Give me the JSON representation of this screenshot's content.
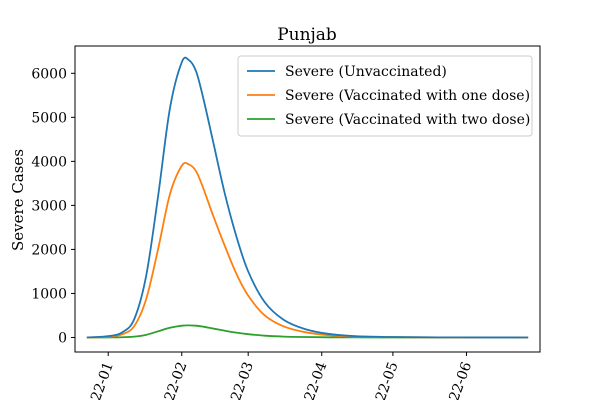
{
  "chart_data": {
    "type": "line",
    "title": "Punjab",
    "xlabel": "",
    "ylabel": "Severe Cases",
    "x_axis_type": "date",
    "xlim": [
      "2021-12-18",
      "2022-07-02"
    ],
    "ylim": [
      -330,
      6620
    ],
    "x_ticks": [
      {
        "date": "2022-01-01",
        "label": "2022-01"
      },
      {
        "date": "2022-02-01",
        "label": "2022-02"
      },
      {
        "date": "2022-03-01",
        "label": "2022-03"
      },
      {
        "date": "2022-04-01",
        "label": "2022-04"
      },
      {
        "date": "2022-05-01",
        "label": "2022-05"
      },
      {
        "date": "2022-06-01",
        "label": "2022-06"
      }
    ],
    "x_tick_rotation": "70 degrees counter-clockwise",
    "y_ticks": [
      0,
      1000,
      2000,
      3000,
      4000,
      5000,
      6000
    ],
    "grid": false,
    "legend_position": "top-right",
    "x": [
      "2021-12-23",
      "2022-01-01",
      "2022-01-07",
      "2022-01-12",
      "2022-01-17",
      "2022-01-22",
      "2022-01-27",
      "2022-02-01",
      "2022-02-04",
      "2022-02-07",
      "2022-02-10",
      "2022-02-14",
      "2022-02-19",
      "2022-02-24",
      "2022-03-01",
      "2022-03-08",
      "2022-03-16",
      "2022-03-25",
      "2022-04-04",
      "2022-04-15",
      "2022-05-01",
      "2022-05-20",
      "2022-06-10",
      "2022-06-27"
    ],
    "series": [
      {
        "name": "Severe (Unvaccinated)",
        "color": "#1f77b4",
        "values": [
          0,
          30,
          120,
          420,
          1400,
          3200,
          5200,
          6250,
          6300,
          6050,
          5450,
          4500,
          3300,
          2300,
          1500,
          800,
          400,
          190,
          80,
          30,
          10,
          3,
          1,
          0
        ]
      },
      {
        "name": "Severe (Vaccinated with one dose)",
        "color": "#ff7f0e",
        "values": [
          0,
          15,
          75,
          260,
          870,
          2000,
          3250,
          3900,
          3930,
          3780,
          3400,
          2800,
          2100,
          1450,
          950,
          500,
          250,
          120,
          50,
          20,
          7,
          2,
          1,
          0
        ]
      },
      {
        "name": "Severe (Vaccinated with two dose)",
        "color": "#2ca02c",
        "values": [
          0,
          1,
          5,
          20,
          60,
          140,
          220,
          268,
          275,
          268,
          245,
          205,
          155,
          110,
          75,
          40,
          20,
          10,
          4,
          2,
          1,
          0,
          0,
          0
        ]
      }
    ]
  }
}
